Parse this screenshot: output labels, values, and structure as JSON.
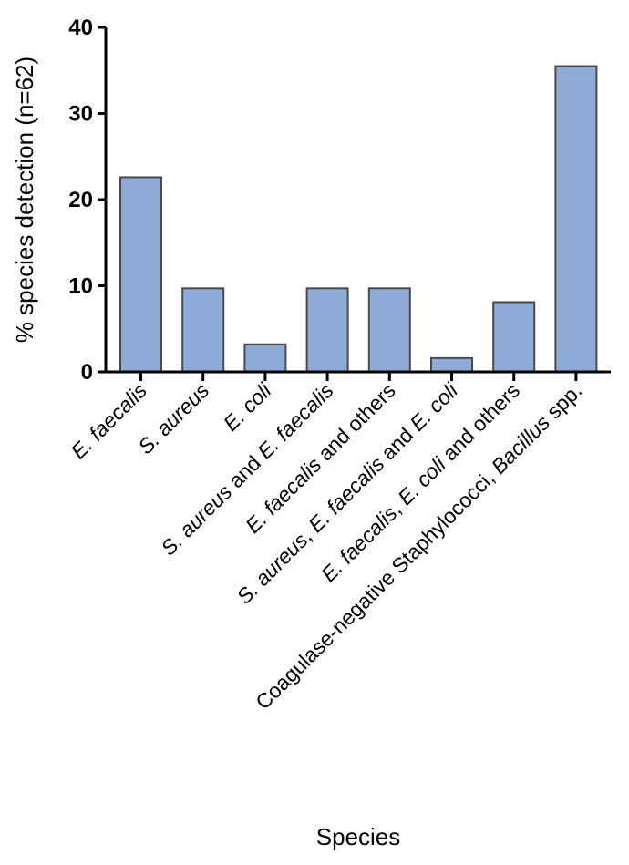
{
  "chart_data": {
    "type": "bar",
    "categories": [
      "E. faecalis",
      "S. aureus",
      "E. coli",
      "S. aureus and E. faecalis",
      "E. faecalis and others",
      "S. aureus, E. faecalis and E. coli",
      "E. faecalis, E. coli and others",
      "Coagulase-negative Staphylococci, Bacillus spp."
    ],
    "values": [
      22.6,
      9.7,
      3.2,
      9.7,
      9.7,
      1.6,
      8.1,
      35.5
    ],
    "yticks": [
      "0",
      "10",
      "20",
      "30",
      "40"
    ],
    "xlabel": "Species",
    "ylabel": "% species detection (n=62)",
    "ylim": [
      0,
      40
    ],
    "grid": false,
    "bar_color": "#8eaad6",
    "bar_edge_color": "#4a4a4a"
  }
}
